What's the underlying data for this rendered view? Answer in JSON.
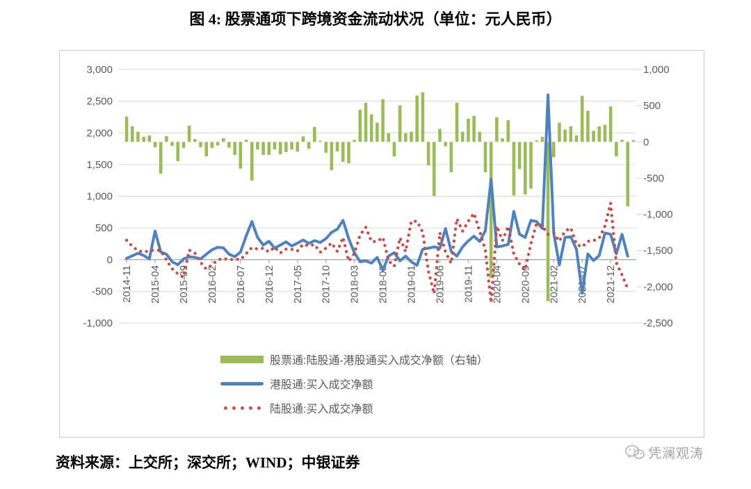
{
  "header": {
    "title": "图 4: 股票通项下跨境资金流动状况（单位：元人民币）"
  },
  "footer": {
    "source": "资料来源：上交所；深交所；WIND；中银证券"
  },
  "watermark": {
    "text": "凭澜观涛"
  },
  "chart_data": {
    "type": "bar",
    "subtype": "combo bar+line, dual axis",
    "title": "图 4: 股票通项下跨境资金流动状况（单位：元人民币）",
    "grid": true,
    "legend_position": "bottom",
    "x_tick_labels": [
      "2014-11",
      "2015-04",
      "2015-09",
      "2016-02",
      "2016-07",
      "2016-12",
      "2017-05",
      "2017-10",
      "2018-03",
      "2018-08",
      "2019-01",
      "2019-06",
      "2019-11",
      "2020-04",
      "2020-09",
      "2021-02",
      "2021-07",
      "2021-12"
    ],
    "x_tick_interval": 5,
    "months": [
      "2014-11",
      "2014-12",
      "2015-01",
      "2015-02",
      "2015-03",
      "2015-04",
      "2015-05",
      "2015-06",
      "2015-07",
      "2015-08",
      "2015-09",
      "2015-10",
      "2015-11",
      "2015-12",
      "2016-01",
      "2016-02",
      "2016-03",
      "2016-04",
      "2016-05",
      "2016-06",
      "2016-07",
      "2016-08",
      "2016-09",
      "2016-10",
      "2016-11",
      "2016-12",
      "2017-01",
      "2017-02",
      "2017-03",
      "2017-04",
      "2017-05",
      "2017-06",
      "2017-07",
      "2017-08",
      "2017-09",
      "2017-10",
      "2017-11",
      "2017-12",
      "2018-01",
      "2018-02",
      "2018-03",
      "2018-04",
      "2018-05",
      "2018-06",
      "2018-07",
      "2018-08",
      "2018-09",
      "2018-10",
      "2018-11",
      "2018-12",
      "2019-01",
      "2019-02",
      "2019-03",
      "2019-04",
      "2019-05",
      "2019-06",
      "2019-07",
      "2019-08",
      "2019-09",
      "2019-10",
      "2019-11",
      "2019-12",
      "2020-01",
      "2020-02",
      "2020-03",
      "2020-04",
      "2020-05",
      "2020-06",
      "2020-07",
      "2020-08",
      "2020-09",
      "2020-10",
      "2020-11",
      "2020-12",
      "2021-01",
      "2021-02",
      "2021-03",
      "2021-04",
      "2021-05",
      "2021-06",
      "2021-07",
      "2021-08",
      "2021-09",
      "2021-10",
      "2021-11",
      "2021-12",
      "2022-01",
      "2022-02",
      "2022-03",
      "2022-04"
    ],
    "left_axis": {
      "min": -1000,
      "max": 3000,
      "step": 500,
      "labels": [
        "3,000",
        "2,500",
        "2,000",
        "1,500",
        "1,000",
        "500",
        "0",
        "-500",
        "-1,000"
      ],
      "values": [
        3000,
        2500,
        2000,
        1500,
        1000,
        500,
        0,
        -500,
        -1000
      ]
    },
    "right_axis": {
      "min": -2500,
      "max": 1000,
      "step": 500,
      "labels": [
        "1,000",
        "500",
        "0",
        "-500",
        "-1,000",
        "-1,500",
        "-2,000",
        "-2,500"
      ],
      "values": [
        1000,
        500,
        0,
        -500,
        -1000,
        -1500,
        -2000,
        -2500
      ]
    },
    "series": [
      {
        "name": "股票通:陆股通-港股通买入成交净额（右轴）",
        "type": "bar",
        "axis": "right",
        "color": "#9BBB59",
        "values": [
          350,
          215,
          140,
          70,
          90,
          -75,
          -440,
          80,
          -55,
          -265,
          -85,
          225,
          40,
          -75,
          -200,
          -85,
          -50,
          50,
          -80,
          -180,
          -370,
          30,
          -535,
          -105,
          -180,
          -180,
          -105,
          -170,
          -140,
          -105,
          -135,
          75,
          -95,
          205,
          15,
          -150,
          -390,
          -130,
          -275,
          -295,
          30,
          445,
          540,
          380,
          265,
          590,
          120,
          -200,
          505,
          120,
          140,
          640,
          685,
          -325,
          -745,
          180,
          -60,
          -420,
          540,
          140,
          320,
          360,
          140,
          -420,
          -1880,
          340,
          50,
          300,
          -740,
          -375,
          -725,
          -645,
          20,
          70,
          -2200,
          -210,
          265,
          170,
          215,
          90,
          635,
          430,
          155,
          215,
          235,
          490,
          -200,
          30,
          -890,
          25
        ]
      },
      {
        "name": "港股通:买入成交净额",
        "type": "line",
        "axis": "left",
        "color": "#4F81BD",
        "values": [
          20,
          60,
          100,
          65,
          10,
          450,
          120,
          85,
          -35,
          -80,
          10,
          45,
          35,
          10,
          85,
          155,
          195,
          185,
          85,
          45,
          120,
          375,
          600,
          350,
          230,
          290,
          180,
          230,
          280,
          215,
          260,
          310,
          255,
          300,
          270,
          330,
          430,
          480,
          620,
          330,
          110,
          -35,
          -20,
          -55,
          35,
          -165,
          55,
          110,
          -20,
          55,
          -35,
          -90,
          165,
          180,
          200,
          180,
          490,
          130,
          55,
          200,
          295,
          370,
          285,
          455,
          1270,
          200,
          215,
          240,
          760,
          400,
          350,
          620,
          600,
          490,
          2600,
          420,
          -85,
          350,
          360,
          165,
          -530,
          90,
          -15,
          65,
          420,
          400,
          90,
          400,
          55,
          null
        ]
      },
      {
        "name": "陆股通:买入成交净额",
        "type": "dotted-line",
        "axis": "left",
        "color": "#C0504D",
        "values": [
          305,
          210,
          140,
          120,
          140,
          155,
          140,
          -5,
          -145,
          -225,
          -280,
          150,
          100,
          -45,
          -150,
          -80,
          -5,
          20,
          -5,
          10,
          0,
          95,
          190,
          165,
          180,
          120,
          196,
          105,
          166,
          163,
          135,
          243,
          215,
          238,
          117,
          180,
          263,
          129,
          351,
          -25,
          97,
          387,
          509,
          285,
          285,
          350,
          -18,
          -105,
          346,
          126,
          607,
          604,
          434,
          -180,
          -537,
          426,
          120,
          -60,
          645,
          450,
          605,
          730,
          450,
          150,
          -680,
          530,
          300,
          525,
          90,
          -70,
          -160,
          255,
          570,
          530,
          400,
          420,
          290,
          450,
          500,
          240,
          200,
          290,
          300,
          340,
          530,
          890,
          -50,
          -240,
          -460,
          null
        ]
      }
    ],
    "colors": {
      "bar": "#9BBB59",
      "line_blue": "#4F81BD",
      "line_red": "#C0504D",
      "grid": "#D9D9D9",
      "axis_text": "#595959",
      "axis_line": "#A6A6A6"
    }
  }
}
